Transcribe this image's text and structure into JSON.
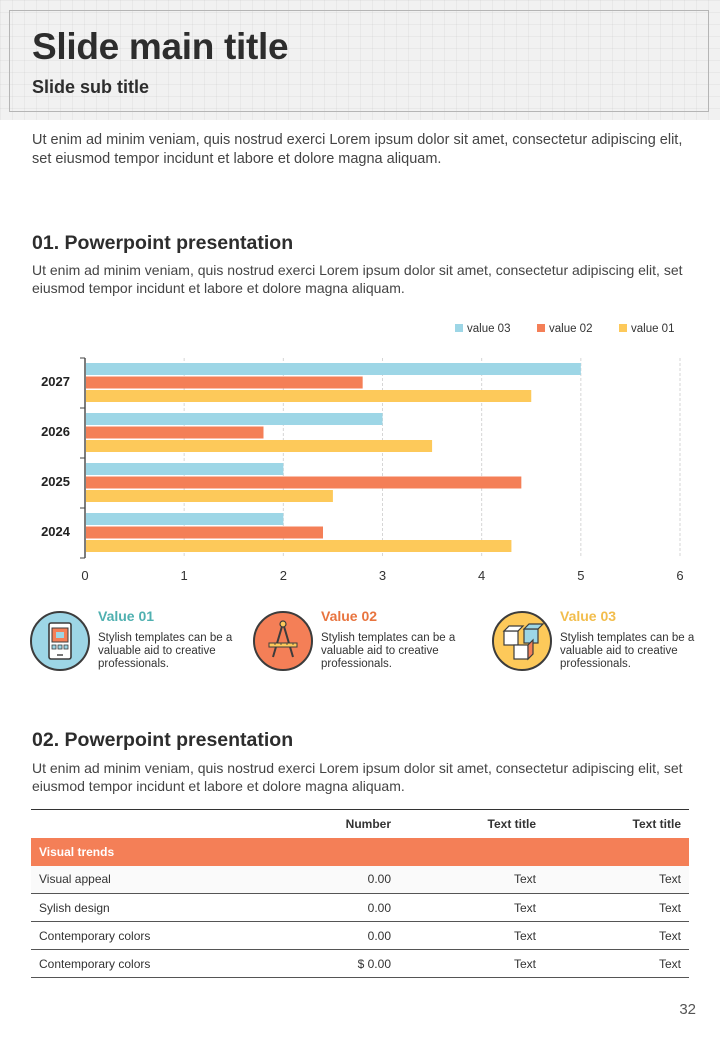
{
  "header": {
    "title": "Slide main title",
    "subtitle": "Slide sub title"
  },
  "intro": "Ut enim ad minim veniam, quis nostrud exerci  Lorem ipsum dolor sit amet, consectetur adipiscing elit, set eiusmod tempor incidunt et labore et dolore magna aliquam.",
  "section1": {
    "title": "01. Powerpoint presentation",
    "body": "Ut enim ad minim veniam, quis nostrud exerci  Lorem ipsum dolor sit amet, consectetur adipiscing elit, set eiusmod tempor incidunt et labore et dolore magna aliquam."
  },
  "chart_data": {
    "type": "bar",
    "orientation": "horizontal",
    "categories": [
      "2027",
      "2026",
      "2025",
      "2024"
    ],
    "series": [
      {
        "name": "value 03",
        "color": "#9dd6e6",
        "values": [
          5,
          3,
          2,
          2
        ]
      },
      {
        "name": "value 02",
        "color": "#f47f57",
        "values": [
          2.8,
          1.8,
          4.4,
          2.4
        ]
      },
      {
        "name": "value 01",
        "color": "#fdc95a",
        "values": [
          4.5,
          3.5,
          2.5,
          4.3
        ]
      }
    ],
    "xlim": [
      0,
      6
    ],
    "xticks": [
      "0",
      "1",
      "2",
      "3",
      "4",
      "5",
      "6"
    ],
    "legend_position": "top-right",
    "grid": true
  },
  "values": [
    {
      "title": "Value 01",
      "text": "Stylish templates can be a valuable aid to creative professionals.",
      "color": "#4fb0b0",
      "circle_color": "#9dd6e6",
      "icon": "mobile-app-icon"
    },
    {
      "title": "Value 02",
      "text": "Stylish templates can be a valuable aid to creative professionals.",
      "color": "#e8743f",
      "circle_color": "#f47f57",
      "icon": "compass-ruler-icon"
    },
    {
      "title": "Value 03",
      "text": "Stylish templates can be a valuable aid to creative professionals.",
      "color": "#f2bd4c",
      "circle_color": "#fdc95a",
      "icon": "cubes-icon"
    }
  ],
  "section2": {
    "title": "02. Powerpoint presentation",
    "body": "Ut enim ad minim veniam, quis nostrud exerci  Lorem ipsum dolor sit amet, consectetur adipiscing elit, set eiusmod tempor incidunt et labore et dolore magna aliquam."
  },
  "table": {
    "headers": [
      "",
      "Number",
      "Text title",
      "Text title"
    ],
    "group": "Visual trends",
    "rows": [
      [
        "Visual appeal",
        "0.00",
        "Text",
        "Text"
      ],
      [
        "Sylish design",
        "0.00",
        "Text",
        "Text"
      ],
      [
        "Contemporary colors",
        "0.00",
        "Text",
        "Text"
      ],
      [
        "Contemporary colors",
        "$ 0.00",
        "Text",
        "Text"
      ]
    ]
  },
  "page_number": "32"
}
